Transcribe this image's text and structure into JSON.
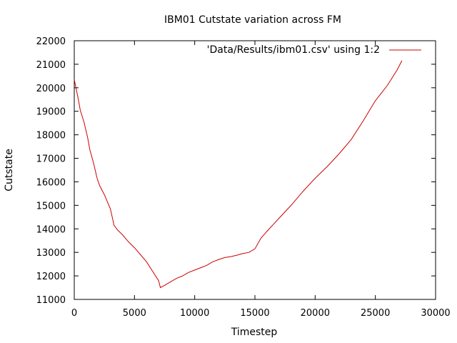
{
  "chart_data": {
    "type": "line",
    "title": "IBM01 Cutstate variation across FM",
    "xlabel": "Timestep",
    "ylabel": "Cutstate",
    "xlim": [
      0,
      30000
    ],
    "ylim": [
      11000,
      22000
    ],
    "xticks": [
      0,
      5000,
      10000,
      15000,
      20000,
      25000,
      30000
    ],
    "yticks": [
      11000,
      12000,
      13000,
      14000,
      15000,
      16000,
      17000,
      18000,
      19000,
      20000,
      21000,
      22000
    ],
    "grid": false,
    "legend_position": "top-right",
    "series": [
      {
        "name": "'Data/Results/ibm01.csv' using 1:2",
        "color": "#cc0000",
        "points": [
          [
            0,
            20350
          ],
          [
            100,
            20100
          ],
          [
            300,
            19600
          ],
          [
            500,
            19050
          ],
          [
            800,
            18550
          ],
          [
            1100,
            17900
          ],
          [
            1300,
            17350
          ],
          [
            1600,
            16800
          ],
          [
            1900,
            16150
          ],
          [
            2100,
            15850
          ],
          [
            2500,
            15450
          ],
          [
            3000,
            14850
          ],
          [
            3300,
            14150
          ],
          [
            3600,
            13950
          ],
          [
            4000,
            13750
          ],
          [
            4500,
            13450
          ],
          [
            5000,
            13200
          ],
          [
            5500,
            12900
          ],
          [
            6000,
            12600
          ],
          [
            6500,
            12200
          ],
          [
            7000,
            11800
          ],
          [
            7150,
            11500
          ],
          [
            7500,
            11600
          ],
          [
            8000,
            11750
          ],
          [
            8500,
            11900
          ],
          [
            9000,
            12000
          ],
          [
            9500,
            12150
          ],
          [
            10000,
            12250
          ],
          [
            10500,
            12350
          ],
          [
            11000,
            12450
          ],
          [
            11500,
            12600
          ],
          [
            12000,
            12700
          ],
          [
            12500,
            12780
          ],
          [
            13000,
            12820
          ],
          [
            13500,
            12880
          ],
          [
            14000,
            12950
          ],
          [
            14500,
            13000
          ],
          [
            15000,
            13150
          ],
          [
            15500,
            13600
          ],
          [
            16000,
            13900
          ],
          [
            17000,
            14450
          ],
          [
            18000,
            15000
          ],
          [
            19000,
            15600
          ],
          [
            20000,
            16150
          ],
          [
            21000,
            16650
          ],
          [
            22000,
            17200
          ],
          [
            23000,
            17800
          ],
          [
            24000,
            18600
          ],
          [
            25000,
            19450
          ],
          [
            26000,
            20100
          ],
          [
            26800,
            20750
          ],
          [
            27200,
            21150
          ]
        ]
      }
    ]
  }
}
